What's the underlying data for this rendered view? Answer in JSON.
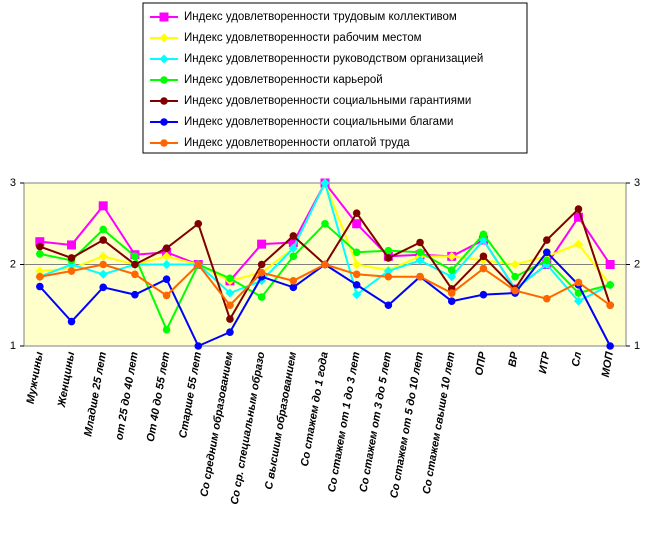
{
  "chart_data": {
    "type": "line",
    "categories": [
      "Мужчины",
      "Женщины",
      "Младше 25 лет",
      "от 25 до 40 лет",
      "От 40 до 55 лет",
      "Старше 55 лет",
      "Со средним образованием",
      "Со ср. специальным образо",
      "С высшим образованием",
      "Со стажем до 1 года",
      "Со стажем от 1 до 3 лет",
      "Со стажем от 3 до 5 лет",
      "Со стажем от 5 до 10 лет",
      "Со стажем свыше 10 лет",
      "ОПР",
      "ВР",
      "ИТР",
      "Сл",
      "МОП"
    ],
    "series": [
      {
        "name": "Индекс удовлетворенности трудовым коллективом",
        "color": "#ff00ff",
        "marker": "square",
        "values": [
          2.28,
          2.24,
          2.72,
          2.12,
          2.15,
          2.0,
          1.8,
          2.25,
          2.27,
          3.0,
          2.5,
          2.1,
          2.12,
          2.1,
          2.3,
          1.7,
          2.0,
          2.58,
          2.0
        ]
      },
      {
        "name": "Индекс удовлетворенности рабочим местом",
        "color": "#ffff00",
        "marker": "diamond",
        "values": [
          1.92,
          1.95,
          2.1,
          2.0,
          2.1,
          2.0,
          1.8,
          1.9,
          2.2,
          3.0,
          2.0,
          1.93,
          2.1,
          2.1,
          2.05,
          2.0,
          2.1,
          2.25,
          1.75
        ]
      },
      {
        "name": "Индекс удовлетворенности руководством организацией",
        "color": "#00ffff",
        "marker": "diamond",
        "values": [
          1.85,
          2.0,
          1.88,
          2.0,
          2.0,
          2.0,
          1.65,
          1.8,
          2.2,
          3.0,
          1.63,
          1.92,
          2.05,
          1.85,
          2.3,
          1.7,
          2.0,
          1.55,
          1.75
        ]
      },
      {
        "name": "Индекс удовлетворенности карьерой",
        "color": "#00ff00",
        "marker": "circle",
        "values": [
          2.13,
          2.05,
          2.43,
          2.1,
          1.2,
          2.0,
          1.83,
          1.6,
          2.1,
          2.5,
          2.15,
          2.17,
          2.15,
          1.93,
          2.37,
          1.85,
          2.05,
          1.65,
          1.75
        ]
      },
      {
        "name": "Индекс удовлетворенности социальными гарантиями",
        "color": "#800000",
        "marker": "circle",
        "values": [
          2.22,
          2.08,
          2.3,
          2.0,
          2.2,
          2.5,
          1.33,
          2.0,
          2.35,
          2.0,
          2.63,
          2.08,
          2.27,
          1.7,
          2.1,
          1.7,
          2.3,
          2.68,
          1.5
        ]
      },
      {
        "name": "Индекс удовлетворенности социальными благами",
        "color": "#0000ff",
        "marker": "circle",
        "values": [
          1.73,
          1.3,
          1.72,
          1.63,
          1.82,
          1.0,
          1.17,
          1.85,
          1.72,
          2.0,
          1.75,
          1.5,
          1.85,
          1.55,
          1.63,
          1.65,
          2.15,
          1.75,
          1.0
        ]
      },
      {
        "name": "Индекс удовлетворенности оплатой труда",
        "color": "#ff6600",
        "marker": "circle",
        "values": [
          1.85,
          1.92,
          2.0,
          1.88,
          1.62,
          2.0,
          1.5,
          1.9,
          1.8,
          2.0,
          1.88,
          1.85,
          1.85,
          1.65,
          1.95,
          1.68,
          1.58,
          1.78,
          1.5
        ]
      }
    ],
    "ylim": [
      1,
      3
    ],
    "yticks": [
      1,
      2,
      3
    ],
    "y2lim": [
      1,
      3
    ],
    "y2ticks": [
      1,
      2,
      3
    ],
    "grid": true
  }
}
